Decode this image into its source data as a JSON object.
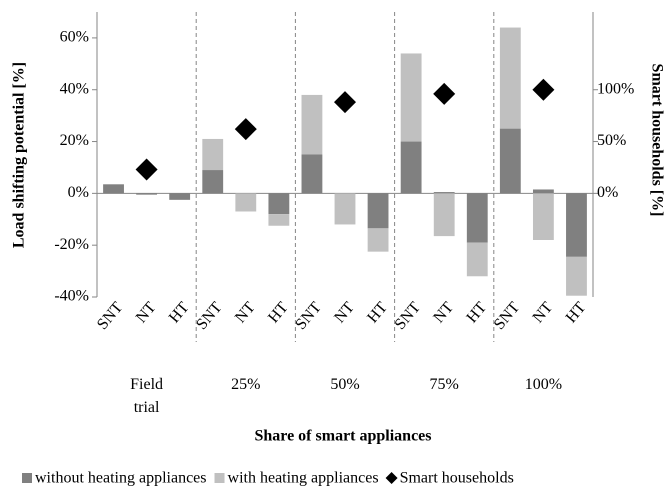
{
  "chart_data": {
    "type": "bar",
    "x_title": "Share of smart appliances",
    "y_title": "Load shifting potential [%]",
    "y2_title": "Smart households [%]",
    "groups": [
      "Field trial",
      "25%",
      "50%",
      "75%",
      "100%"
    ],
    "categories": [
      "SNT",
      "NT",
      "HT",
      "SNT",
      "NT",
      "HT",
      "SNT",
      "NT",
      "HT",
      "SNT",
      "NT",
      "HT",
      "SNT",
      "NT",
      "HT"
    ],
    "stacked": true,
    "series": [
      {
        "name": "without heating appliances",
        "color": "#808080",
        "values": [
          3.5,
          -0.5,
          -2.5,
          9,
          0,
          -8,
          15,
          0,
          -13.5,
          20,
          0.5,
          -19,
          25,
          1.5,
          -24.5
        ]
      },
      {
        "name": "with heating appliances",
        "color": "#c0c0c0",
        "values": [
          0,
          0,
          0,
          12,
          -7,
          -4.5,
          23,
          -12,
          -9,
          34,
          -16.5,
          -13,
          39,
          -18,
          -15
        ]
      },
      {
        "name": "Smart households",
        "color": "#000000",
        "type": "scatter",
        "marker": "diamond",
        "axis": "y2",
        "values": [
          null,
          23,
          null,
          null,
          62,
          null,
          null,
          88,
          null,
          null,
          96,
          null,
          null,
          100,
          null
        ]
      }
    ],
    "ylim": [
      -40,
      70
    ],
    "yticks": [
      {
        "value": -40,
        "label": "-40%"
      },
      {
        "value": -20,
        "label": "-20%"
      },
      {
        "value": 0,
        "label": "0%"
      },
      {
        "value": 20,
        "label": "20%"
      },
      {
        "value": 40,
        "label": "40%"
      },
      {
        "value": 60,
        "label": "60%"
      }
    ],
    "y2lim": [
      -100,
      175
    ],
    "y2ticks": [
      {
        "value": 0,
        "label": "0%"
      },
      {
        "value": 50,
        "label": "50%"
      },
      {
        "value": 100,
        "label": "100%"
      }
    ],
    "legend": "bottom"
  }
}
